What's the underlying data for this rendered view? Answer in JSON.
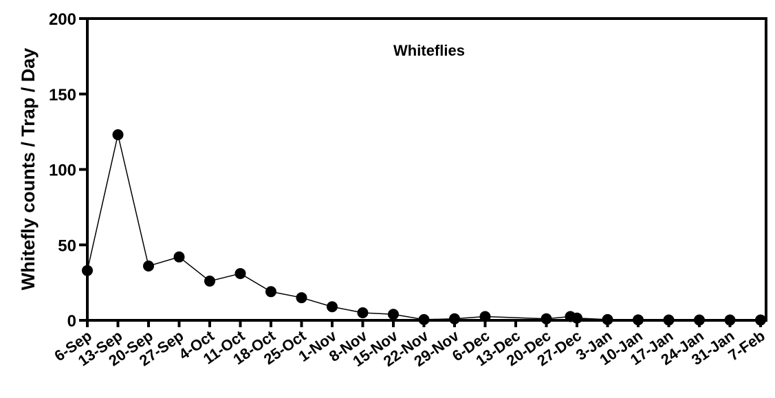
{
  "chart_data": {
    "type": "line",
    "title": "Whiteflies",
    "xlabel": "",
    "ylabel": "Whitefly counts / Trap / Day",
    "ylim": [
      0,
      200
    ],
    "yticks": [
      0,
      50,
      100,
      150,
      200
    ],
    "categories": [
      "6-Sep",
      "13-Sep",
      "20-Sep",
      "27-Sep",
      "4-Oct",
      "11-Oct",
      "18-Oct",
      "25-Oct",
      "1-Nov",
      "8-Nov",
      "15-Nov",
      "22-Nov",
      "29-Nov",
      "6-Dec",
      "13-Dec",
      "20-Dec",
      "27-Dec",
      "3-Jan",
      "10-Jan",
      "17-Jan",
      "24-Jan",
      "31-Jan",
      "7-Feb"
    ],
    "series": [
      {
        "name": "",
        "points": [
          {
            "x": "6-Sep",
            "y": 33
          },
          {
            "x": "13-Sep",
            "y": 123
          },
          {
            "x": "20-Sep",
            "y": 36
          },
          {
            "x": "27-Sep",
            "y": 42
          },
          {
            "x": "4-Oct",
            "y": 26
          },
          {
            "x": "11-Oct",
            "y": 31
          },
          {
            "x": "18-Oct",
            "y": 19
          },
          {
            "x": "25-Oct",
            "y": 15
          },
          {
            "x": "1-Nov",
            "y": 9
          },
          {
            "x": "8-Nov",
            "y": 5
          },
          {
            "x": "15-Nov",
            "y": 4
          },
          {
            "x": "22-Nov",
            "y": 0.5
          },
          {
            "x": "29-Nov",
            "y": 1
          },
          {
            "x": "6-Dec",
            "y": 2.5
          },
          {
            "x": "20-Dec",
            "y": 1
          },
          {
            "x": "27-Dec",
            "y": 2.5,
            "x_offset_days": -1.5
          },
          {
            "x": "27-Dec",
            "y": 1.5
          },
          {
            "x": "3-Jan",
            "y": 0.5
          },
          {
            "x": "10-Jan",
            "y": 0.3
          },
          {
            "x": "17-Jan",
            "y": 0.2
          },
          {
            "x": "24-Jan",
            "y": 0.2
          },
          {
            "x": "31-Jan",
            "y": 0.2
          },
          {
            "x": "7-Feb",
            "y": 0.2
          }
        ]
      }
    ],
    "grid": false,
    "legend": "none"
  }
}
